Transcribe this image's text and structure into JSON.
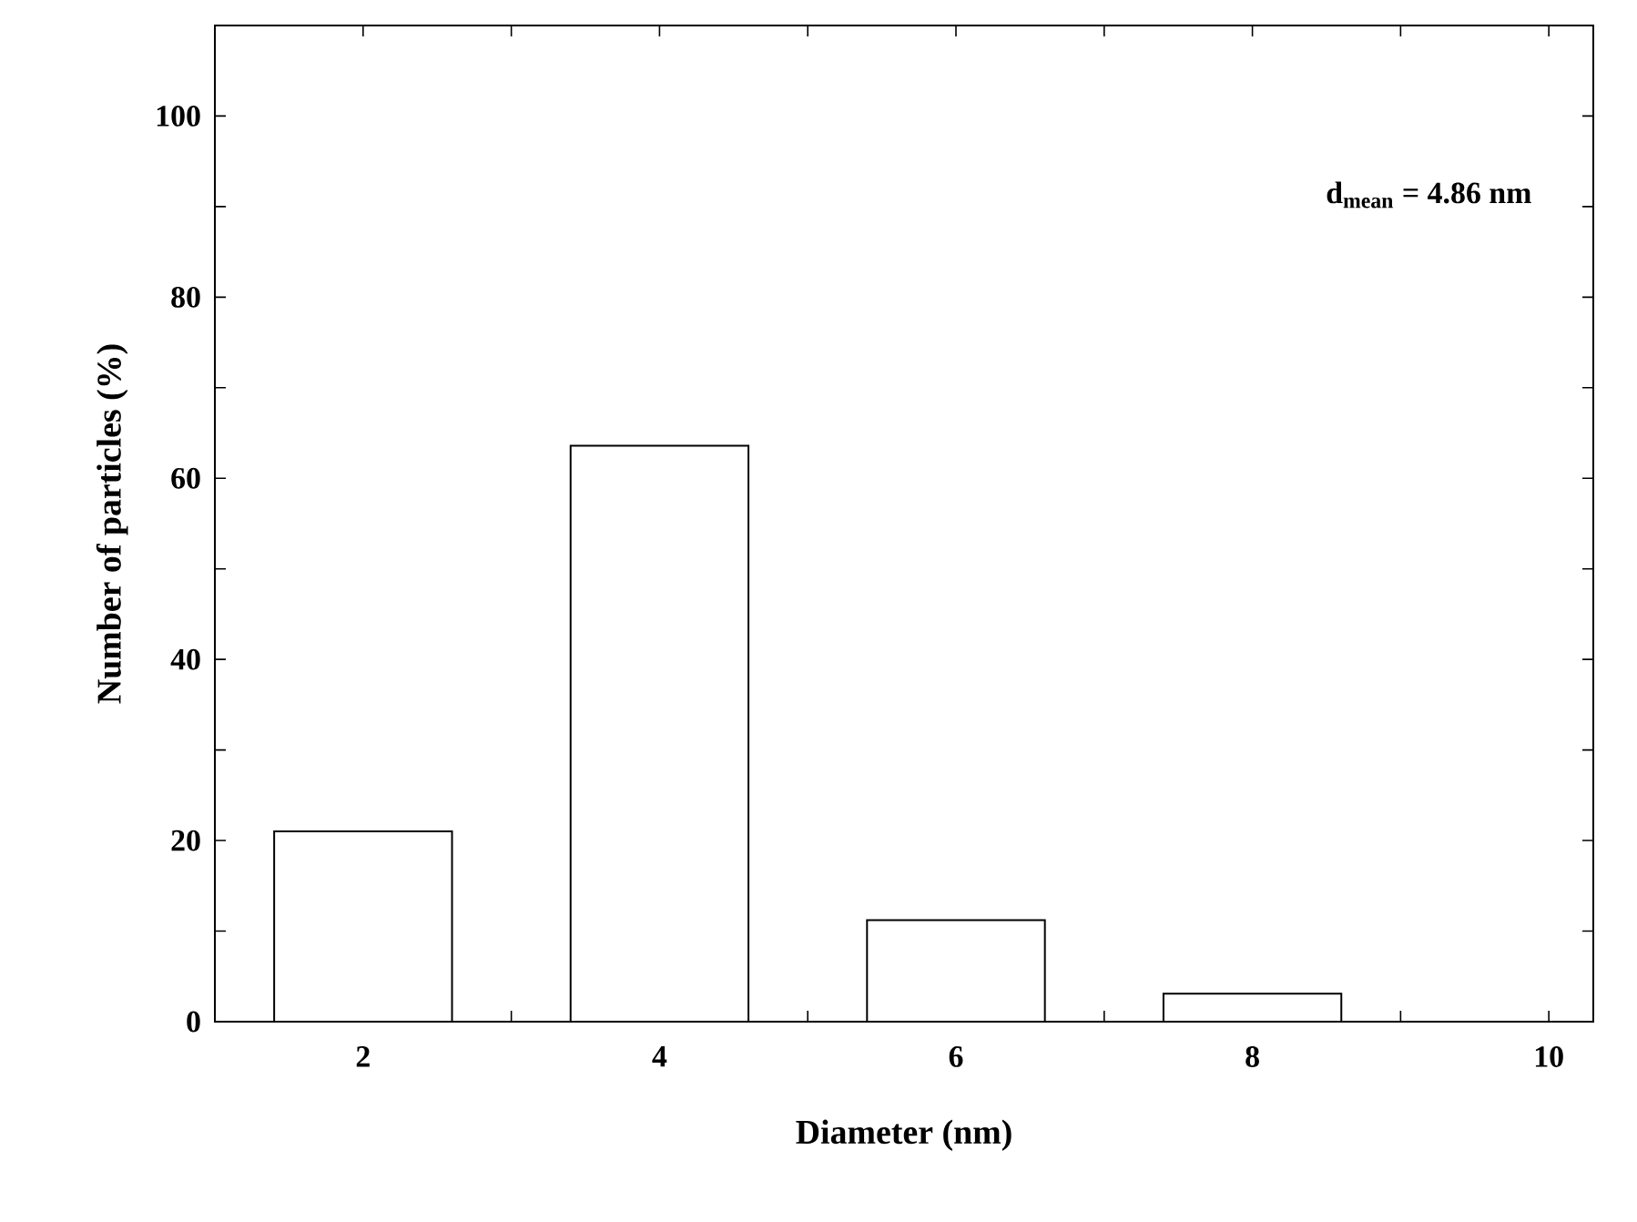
{
  "chart_data": {
    "type": "bar",
    "xlabel": "Diameter (nm)",
    "ylabel": "Number of particles (%)",
    "x": [
      2,
      4,
      6,
      8
    ],
    "values": [
      21,
      63.6,
      11.2,
      3.1
    ],
    "color": "#ffffff",
    "xlim": [
      1,
      10.3
    ],
    "ylim": [
      0,
      110
    ],
    "xticks": [
      2,
      {
        "value": 3,
        "label": null
      },
      4,
      {
        "value": 5,
        "label": null
      },
      6,
      {
        "value": 7,
        "label": null
      },
      8,
      {
        "value": 9,
        "label": null
      },
      10
    ],
    "yticks": [
      0,
      {
        "value": 10,
        "label": null
      },
      20,
      {
        "value": 30,
        "label": null
      },
      40,
      {
        "value": 50,
        "label": null
      },
      60,
      {
        "value": 70,
        "label": null
      },
      80,
      {
        "value": 90,
        "label": null
      },
      100
    ],
    "annotations": [
      "d$_{mean}$ = 4.86 nm"
    ]
  }
}
